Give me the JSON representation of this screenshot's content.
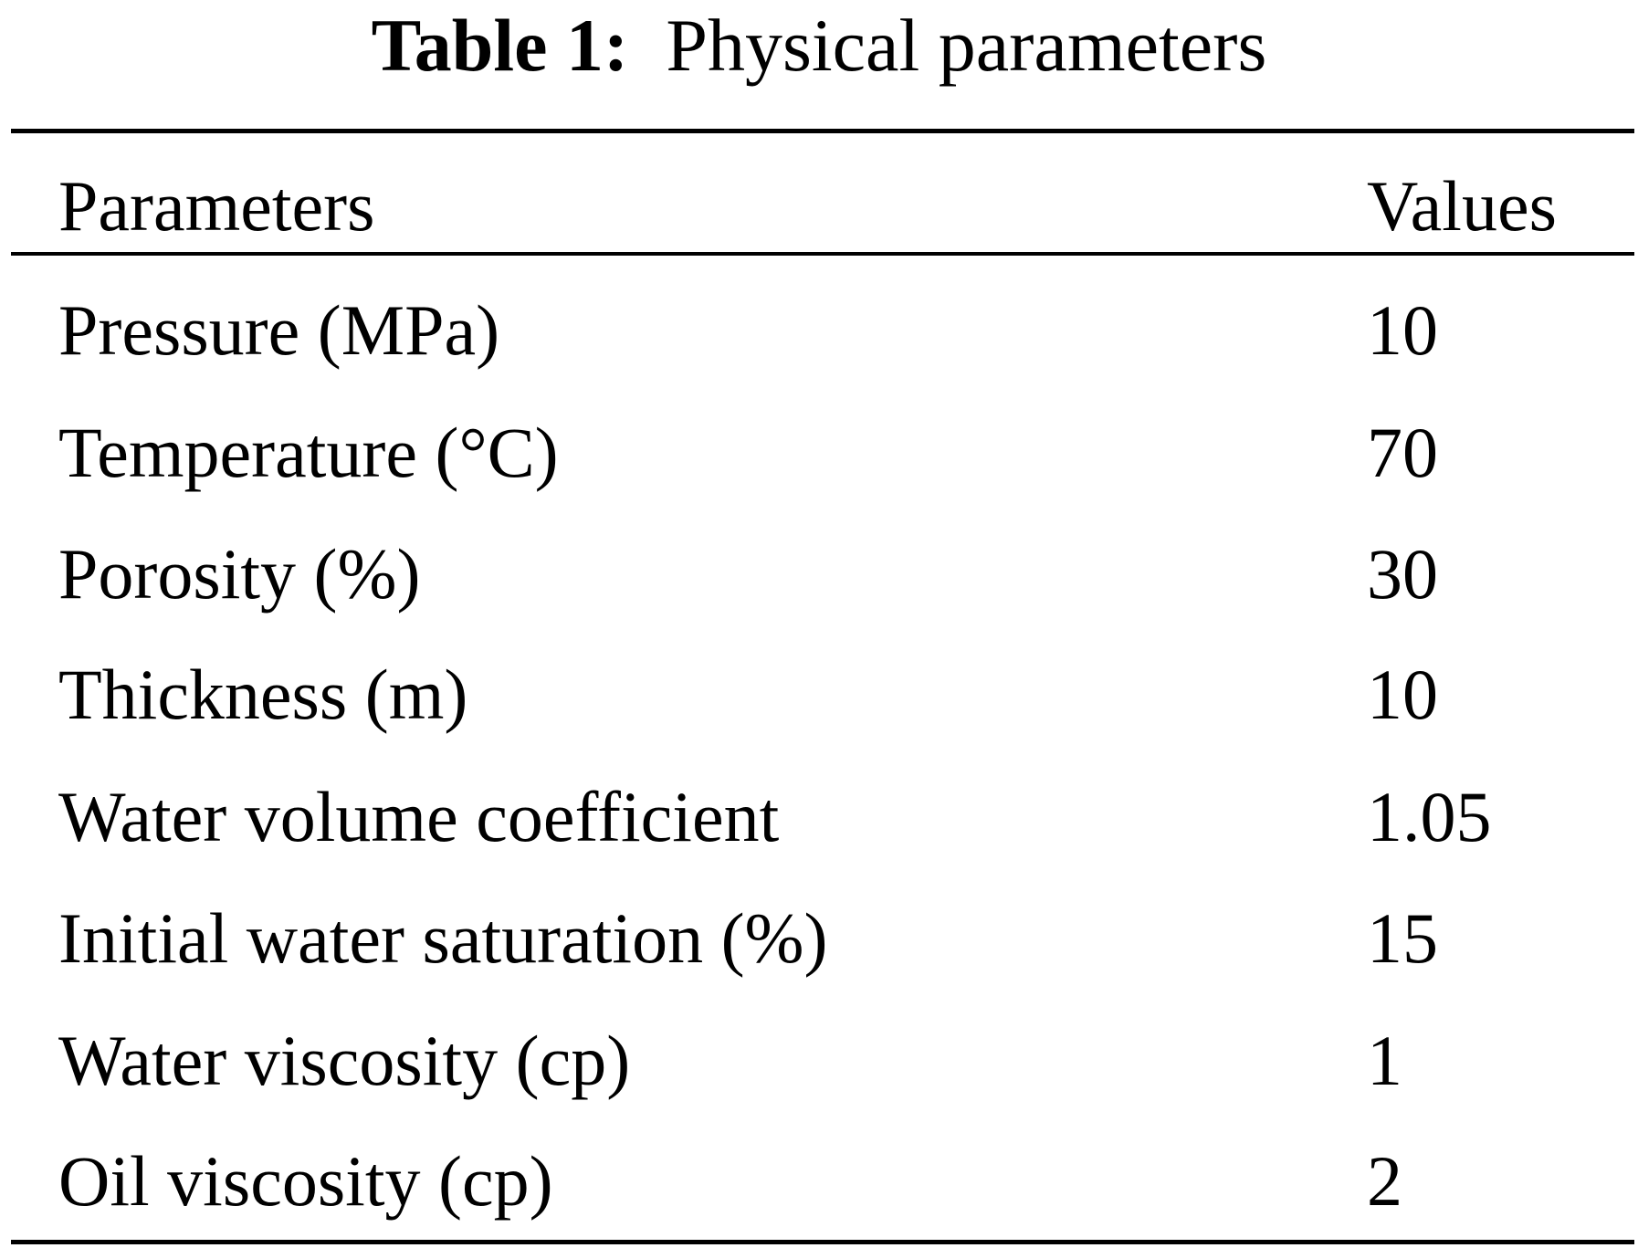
{
  "caption": {
    "label": "Table 1:",
    "title": "Physical parameters"
  },
  "table": {
    "headers": {
      "parameter": "Parameters",
      "value": "Values"
    },
    "rows": [
      {
        "parameter": "Pressure (MPa)",
        "value": "10"
      },
      {
        "parameter": "Temperature (°C)",
        "value": "70"
      },
      {
        "parameter": "Porosity (%)",
        "value": "30"
      },
      {
        "parameter": "Thickness (m)",
        "value": "10"
      },
      {
        "parameter": "Water volume coefficient",
        "value": "1.05"
      },
      {
        "parameter": "Initial water saturation (%)",
        "value": "15"
      },
      {
        "parameter": "Water viscosity (cp)",
        "value": "1"
      },
      {
        "parameter": "Oil viscosity (cp)",
        "value": "2"
      }
    ]
  }
}
